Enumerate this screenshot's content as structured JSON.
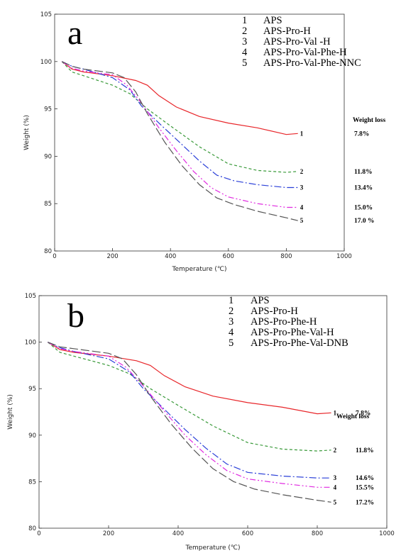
{
  "chart_data": [
    {
      "panel_letter": "a",
      "type": "line",
      "xlabel": "Temperature (℃)",
      "ylabel": "Weight (%)",
      "xlim": [
        0,
        1000
      ],
      "ylim": [
        80,
        105
      ],
      "xticks": [
        0,
        200,
        400,
        600,
        800,
        1000
      ],
      "yticks": [
        80,
        85,
        90,
        95,
        100,
        105
      ],
      "weight_loss_title": "Weight loss",
      "series": [
        {
          "id": "1",
          "name": "APS",
          "color": "#e8262a",
          "dash": "",
          "weight_loss": "7.8%",
          "points": [
            [
              25,
              100
            ],
            [
              60,
              99.2
            ],
            [
              100,
              98.9
            ],
            [
              200,
              98.5
            ],
            [
              280,
              98.0
            ],
            [
              320,
              97.5
            ],
            [
              360,
              96.4
            ],
            [
              420,
              95.2
            ],
            [
              500,
              94.2
            ],
            [
              600,
              93.5
            ],
            [
              700,
              93.0
            ],
            [
              800,
              92.3
            ],
            [
              840,
              92.4
            ]
          ]
        },
        {
          "id": "2",
          "name": "APS-Pro-H",
          "color": "#3a9a3a",
          "dash": "4,3",
          "weight_loss": "11.8%",
          "points": [
            [
              25,
              100
            ],
            [
              60,
              98.9
            ],
            [
              100,
              98.5
            ],
            [
              150,
              98.0
            ],
            [
              200,
              97.5
            ],
            [
              260,
              96.6
            ],
            [
              320,
              95.0
            ],
            [
              400,
              93.2
            ],
            [
              500,
              91.0
            ],
            [
              600,
              89.2
            ],
            [
              700,
              88.5
            ],
            [
              800,
              88.3
            ],
            [
              840,
              88.4
            ]
          ]
        },
        {
          "id": "3",
          "name": "APS-Pro-Val -H",
          "color": "#2a3fd8",
          "dash": "10,3,2,3",
          "weight_loss": "13.4%",
          "points": [
            [
              25,
              100
            ],
            [
              60,
              99.5
            ],
            [
              100,
              99.2
            ],
            [
              200,
              98.3
            ],
            [
              260,
              97.0
            ],
            [
              300,
              95.3
            ],
            [
              360,
              93.5
            ],
            [
              420,
              91.8
            ],
            [
              500,
              89.5
            ],
            [
              560,
              88.0
            ],
            [
              620,
              87.4
            ],
            [
              700,
              87.0
            ],
            [
              800,
              86.7
            ],
            [
              840,
              86.7
            ]
          ]
        },
        {
          "id": "4",
          "name": "APS-Pro-Val-Phe-H",
          "color": "#e028e0",
          "dash": "8,3,2,3,2,3",
          "weight_loss": "15.0%",
          "points": [
            [
              25,
              100
            ],
            [
              60,
              99.3
            ],
            [
              100,
              99.0
            ],
            [
              200,
              98.6
            ],
            [
              250,
              97.5
            ],
            [
              300,
              95.6
            ],
            [
              360,
              93.0
            ],
            [
              420,
              90.6
            ],
            [
              480,
              88.4
            ],
            [
              540,
              86.7
            ],
            [
              600,
              85.7
            ],
            [
              700,
              85.0
            ],
            [
              800,
              84.6
            ],
            [
              840,
              84.6
            ]
          ]
        },
        {
          "id": "5",
          "name": "APS-Pro-Val-Phe-NNC",
          "color": "#555555",
          "dash": "12,4",
          "weight_loss": "17.0 %",
          "points": [
            [
              25,
              100
            ],
            [
              60,
              99.5
            ],
            [
              100,
              99.2
            ],
            [
              200,
              98.8
            ],
            [
              240,
              98.3
            ],
            [
              280,
              96.8
            ],
            [
              320,
              94.5
            ],
            [
              380,
              91.5
            ],
            [
              440,
              89.0
            ],
            [
              500,
              87.0
            ],
            [
              560,
              85.6
            ],
            [
              620,
              84.9
            ],
            [
              700,
              84.2
            ],
            [
              800,
              83.5
            ],
            [
              840,
              83.2
            ]
          ]
        }
      ]
    },
    {
      "panel_letter": "b",
      "type": "line",
      "xlabel": "Temperature (℃)",
      "ylabel": "Weight (%)",
      "xlim": [
        0,
        1000
      ],
      "ylim": [
        80,
        105
      ],
      "xticks": [
        0,
        200,
        400,
        600,
        800,
        1000
      ],
      "yticks": [
        80,
        85,
        90,
        95,
        100,
        105
      ],
      "weight_loss_title": "Weight loss",
      "series": [
        {
          "id": "1",
          "name": "APS",
          "color": "#e8262a",
          "dash": "",
          "weight_loss": "7.8%",
          "points": [
            [
              25,
              100
            ],
            [
              60,
              99.2
            ],
            [
              100,
              98.9
            ],
            [
              200,
              98.5
            ],
            [
              280,
              98.0
            ],
            [
              320,
              97.5
            ],
            [
              360,
              96.4
            ],
            [
              420,
              95.2
            ],
            [
              500,
              94.2
            ],
            [
              600,
              93.5
            ],
            [
              700,
              93.0
            ],
            [
              800,
              92.3
            ],
            [
              840,
              92.4
            ]
          ]
        },
        {
          "id": "2",
          "name": "APS-Pro-H",
          "color": "#3a9a3a",
          "dash": "4,3",
          "weight_loss": "11.8%",
          "points": [
            [
              25,
              100
            ],
            [
              60,
              98.9
            ],
            [
              100,
              98.5
            ],
            [
              150,
              98.0
            ],
            [
              200,
              97.5
            ],
            [
              260,
              96.6
            ],
            [
              320,
              95.0
            ],
            [
              400,
              93.2
            ],
            [
              500,
              91.0
            ],
            [
              600,
              89.2
            ],
            [
              700,
              88.5
            ],
            [
              800,
              88.3
            ],
            [
              840,
              88.4
            ]
          ]
        },
        {
          "id": "3",
          "name": "APS-Pro-Phe-H",
          "color": "#2a3fd8",
          "dash": "10,3,2,3",
          "weight_loss": "14.6%",
          "points": [
            [
              25,
              100
            ],
            [
              60,
              99.4
            ],
            [
              100,
              99.0
            ],
            [
              200,
              98.2
            ],
            [
              260,
              96.8
            ],
            [
              300,
              95.0
            ],
            [
              360,
              92.8
            ],
            [
              420,
              90.6
            ],
            [
              480,
              88.6
            ],
            [
              540,
              86.9
            ],
            [
              600,
              86.0
            ],
            [
              700,
              85.6
            ],
            [
              800,
              85.4
            ],
            [
              840,
              85.4
            ]
          ]
        },
        {
          "id": "4",
          "name": "APS-Pro-Phe-Val-H",
          "color": "#e028e0",
          "dash": "8,3,2,3,2,3",
          "weight_loss": "15.5%",
          "points": [
            [
              25,
              100
            ],
            [
              60,
              99.3
            ],
            [
              100,
              99.0
            ],
            [
              200,
              98.5
            ],
            [
              250,
              97.3
            ],
            [
              300,
              95.3
            ],
            [
              360,
              92.6
            ],
            [
              420,
              90.0
            ],
            [
              480,
              87.9
            ],
            [
              540,
              86.2
            ],
            [
              600,
              85.3
            ],
            [
              700,
              84.8
            ],
            [
              800,
              84.4
            ],
            [
              840,
              84.4
            ]
          ]
        },
        {
          "id": "5",
          "name": "APS-Pro-Phe-Val-DNB",
          "color": "#555555",
          "dash": "12,4",
          "weight_loss": "17.2%",
          "points": [
            [
              25,
              100
            ],
            [
              60,
              99.5
            ],
            [
              100,
              99.3
            ],
            [
              200,
              98.8
            ],
            [
              240,
              98.2
            ],
            [
              280,
              96.5
            ],
            [
              320,
              94.2
            ],
            [
              380,
              91.2
            ],
            [
              440,
              88.6
            ],
            [
              500,
              86.4
            ],
            [
              560,
              85.0
            ],
            [
              620,
              84.2
            ],
            [
              700,
              83.6
            ],
            [
              800,
              83.0
            ],
            [
              840,
              82.8
            ]
          ]
        }
      ]
    }
  ]
}
